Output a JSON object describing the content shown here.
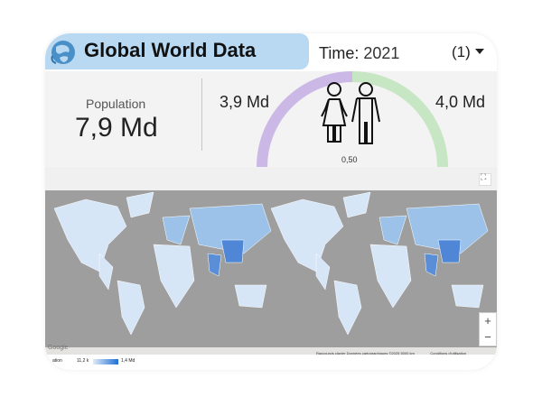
{
  "header": {
    "title": "Global World Data",
    "time_label": "Time:",
    "time_value": "2021",
    "dropdown_label": "(1)"
  },
  "stats": {
    "population_label": "Population",
    "population_value": "7,9 Md",
    "female_value": "3,9 Md",
    "male_value": "4,0 Md",
    "gender_ratio": "0,50",
    "gauge_colors": {
      "female": "#cbb8e6",
      "male": "#c7e6c3"
    }
  },
  "map": {
    "attribution": "Raccourcis clavier   Données cartographiques ©2025   5000 km ▁▁▁▁▁   Conditions d'utilisation",
    "zoom_in": "+",
    "zoom_out": "−",
    "fullscreen_icon": "⛶",
    "google_label": "Google",
    "legend": {
      "label": "ation",
      "min": "11,2 k",
      "max": "1,4 Md"
    },
    "colors": {
      "ocean": "#9e9e9e",
      "light_land": "#d6e6f7",
      "mid_land": "#9cc2ea",
      "dark_land": "#4f86d6"
    }
  }
}
